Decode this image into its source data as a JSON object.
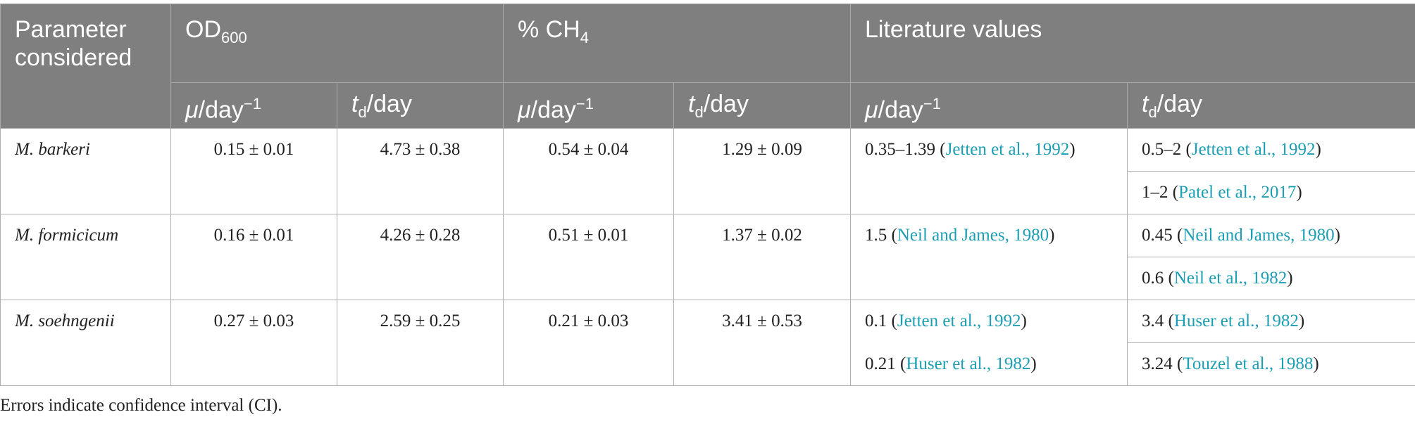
{
  "table": {
    "header": {
      "parameter": "Parameter considered",
      "groups": [
        {
          "text": "OD",
          "sub": "600"
        },
        {
          "text": "% CH",
          "sub": "4"
        },
        {
          "text": "Literature values"
        }
      ],
      "subheaders": [
        {
          "symbol": "μ",
          "unit": "/day",
          "sup": "−1"
        },
        {
          "symbol": "t",
          "sub": "d",
          "unit": "/day"
        },
        {
          "symbol": "μ",
          "unit": "/day",
          "sup": "−1"
        },
        {
          "symbol": "t",
          "sub": "d",
          "unit": "/day"
        },
        {
          "symbol": "μ",
          "unit": "/day",
          "sup": "−1"
        },
        {
          "symbol": "t",
          "sub": "d",
          "unit": "/day"
        }
      ]
    },
    "rows": [
      {
        "organism": "M. barkeri",
        "values": [
          "0.15 ± 0.01",
          "4.73 ± 0.38",
          "0.54 ± 0.04",
          "1.29 ± 0.09"
        ],
        "lit_mu": [
          {
            "text": "0.35–1.39 (",
            "citation": "Jetten et al., 1992",
            "suffix": ")"
          }
        ],
        "lit_td": [
          {
            "text": "0.5–2 (",
            "citation": "Jetten et al., 1992",
            "suffix": ")"
          },
          {
            "text": "1–2 (",
            "citation": "Patel et al., 2017",
            "suffix": ")"
          }
        ]
      },
      {
        "organism": "M. formicicum",
        "values": [
          "0.16 ± 0.01",
          "4.26 ± 0.28",
          "0.51 ± 0.01",
          "1.37 ± 0.02"
        ],
        "lit_mu": [
          {
            "text": "1.5 (",
            "citation": "Neil and James, 1980",
            "suffix": ")"
          }
        ],
        "lit_td": [
          {
            "text": "0.45 (",
            "citation": "Neil and James, 1980",
            "suffix": ")"
          },
          {
            "text": "0.6 (",
            "citation": "Neil et al., 1982",
            "suffix": ")"
          }
        ]
      },
      {
        "organism": "M. soehngenii",
        "values": [
          "0.27 ± 0.03",
          "2.59 ± 0.25",
          "0.21 ± 0.03",
          "3.41 ± 0.53"
        ],
        "lit_mu": [
          {
            "text": "0.1 (",
            "citation": "Jetten et al., 1992",
            "suffix": ")"
          },
          {
            "text": "0.21 (",
            "citation": "Huser et al., 1982",
            "suffix": ")"
          }
        ],
        "lit_td": [
          {
            "text": "3.4 (",
            "citation": "Huser et al., 1982",
            "suffix": ")"
          },
          {
            "text": "3.24 (",
            "citation": "Touzel et al., 1988",
            "suffix": ")"
          }
        ]
      }
    ],
    "footnote": "Errors indicate confidence interval (CI)."
  }
}
